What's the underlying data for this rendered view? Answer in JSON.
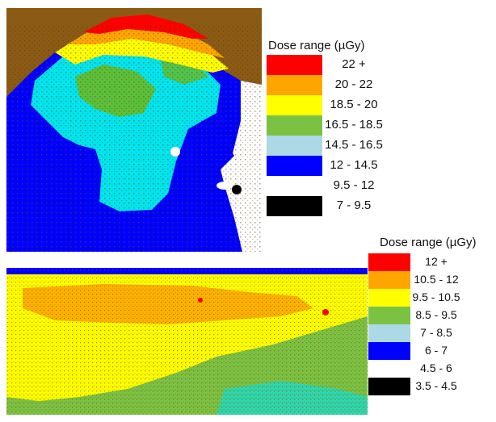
{
  "legend_top": {
    "title": "Dose range (µGy)",
    "entries": [
      {
        "label": "22 +",
        "color": "#ff0000"
      },
      {
        "label": "20 - 22",
        "color": "#ffa500"
      },
      {
        "label": "18.5 - 20",
        "color": "#ffff00"
      },
      {
        "label": "16.5 - 18.5",
        "color": "#7cc242"
      },
      {
        "label": "14.5 - 16.5",
        "color": "#add8e6"
      },
      {
        "label": "12 - 14.5",
        "color": "#0000ff"
      },
      {
        "label": "9.5 - 12",
        "color": "#ffffff"
      },
      {
        "label": "7 - 9.5",
        "color": "#000000"
      }
    ]
  },
  "legend_bottom": {
    "title": "Dose range (µGy)",
    "entries": [
      {
        "label": "12 +",
        "color": "#ff0000"
      },
      {
        "label": "10.5 - 12",
        "color": "#ffa500"
      },
      {
        "label": "9.5 - 10.5",
        "color": "#ffff00"
      },
      {
        "label": "8.5 - 9.5",
        "color": "#7cc242"
      },
      {
        "label": "7 - 8.5",
        "color": "#add8e6"
      },
      {
        "label": "6 - 7",
        "color": "#0000ff"
      },
      {
        "label": "4.5 - 6",
        "color": "#ffffff"
      },
      {
        "label": "3.5 - 4.5",
        "color": "#000000"
      }
    ]
  },
  "colors": {
    "background_brown": "#8b5a14",
    "cyan": "#00e5ee",
    "blue": "#0000ff",
    "green": "#5cbf3a",
    "yellow": "#ffff00",
    "orange": "#ffa500",
    "red": "#ff0000"
  }
}
